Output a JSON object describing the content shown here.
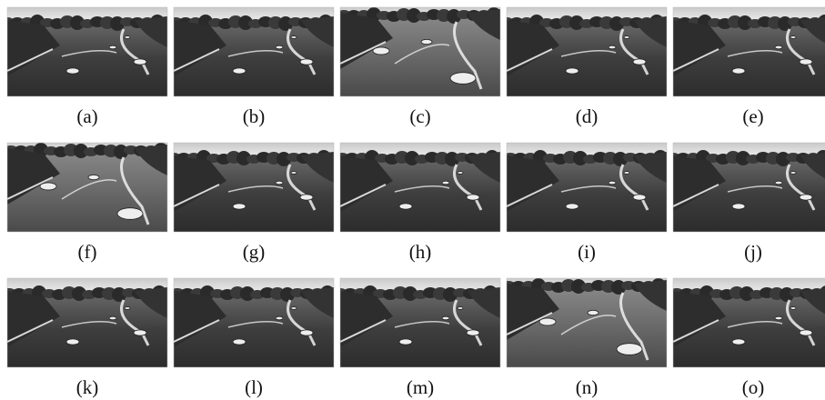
{
  "figure": {
    "captions": [
      "(a)",
      "(b)",
      "(c)",
      "(d)",
      "(e)",
      "(f)",
      "(g)",
      "(h)",
      "(i)",
      "(j)",
      "(k)",
      "(l)",
      "(m)",
      "(n)",
      "(o)"
    ]
  }
}
